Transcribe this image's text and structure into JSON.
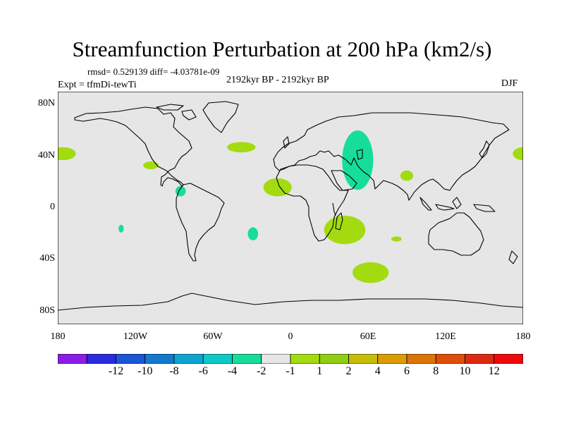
{
  "title": "Streamfunction Perturbation at 200 hPa (km2/s)",
  "stats_line": "rmsd= 0.529139 diff= -4.03781e-09",
  "experiment": "Expt = tfmDi-tewTi",
  "period": "2192kyr BP - 2192kyr BP",
  "season": "DJF",
  "map": {
    "projection": "cylindrical-equidistant",
    "lon_range": [
      -180,
      180
    ],
    "lat_range": [
      -90,
      90
    ],
    "background_color": "#e6e6e6",
    "x_ticks": [
      {
        "lon": -180,
        "label": "180"
      },
      {
        "lon": -120,
        "label": "120W"
      },
      {
        "lon": -60,
        "label": "60W"
      },
      {
        "lon": 0,
        "label": "0"
      },
      {
        "lon": 60,
        "label": "60E"
      },
      {
        "lon": 120,
        "label": "120E"
      },
      {
        "lon": 180,
        "label": "180"
      }
    ],
    "y_ticks": [
      {
        "lat": 80,
        "label": "80N"
      },
      {
        "lat": 40,
        "label": "40N"
      },
      {
        "lat": 0,
        "label": "0"
      },
      {
        "lat": -40,
        "label": "40S"
      },
      {
        "lat": -80,
        "label": "80S"
      }
    ],
    "anomalies": [
      {
        "name": "n-pacific-east",
        "lon": -176,
        "lat": 42,
        "rlon": 10,
        "rlat": 5,
        "level": "1 to 2"
      },
      {
        "name": "n-pacific-west",
        "lon": 180,
        "lat": 42,
        "rlon": 8,
        "rlat": 5,
        "level": "1 to 2"
      },
      {
        "name": "ne-pacific",
        "lon": -108,
        "lat": 33,
        "rlon": 6,
        "rlat": 3,
        "level": "1 to 2"
      },
      {
        "name": "n-atlantic",
        "lon": -38,
        "lat": 47,
        "rlon": 11,
        "rlat": 4,
        "level": "1 to 2"
      },
      {
        "name": "central-america",
        "lon": -85,
        "lat": 13,
        "rlon": 4,
        "rlat": 4,
        "level": "-2 to -1"
      },
      {
        "name": "n-africa",
        "lon": -10,
        "lat": 16,
        "rlon": 11,
        "rlat": 7,
        "level": "1 to 2"
      },
      {
        "name": "middle-east",
        "lon": 52,
        "lat": 37,
        "rlon": 12,
        "rlat": 23,
        "level": "-2 to -1"
      },
      {
        "name": "tibet",
        "lon": 90,
        "lat": 25,
        "rlon": 5,
        "rlat": 4,
        "level": "1 to 2"
      },
      {
        "name": "s-africa",
        "lon": 42,
        "lat": -17,
        "rlon": 16,
        "rlat": 11,
        "level": "1 to 2"
      },
      {
        "name": "s-atlantic",
        "lon": -29,
        "lat": -20,
        "rlon": 4,
        "rlat": 5,
        "level": "-2 to -1"
      },
      {
        "name": "s-pacific",
        "lon": -131,
        "lat": -16,
        "rlon": 2,
        "rlat": 3,
        "level": "-2 to -1"
      },
      {
        "name": "s-indian",
        "lon": 82,
        "lat": -24,
        "rlon": 4,
        "rlat": 2,
        "level": "1 to 2"
      },
      {
        "name": "s-ocean",
        "lon": 62,
        "lat": -50,
        "rlon": 14,
        "rlat": 8,
        "level": "1 to 2"
      }
    ]
  },
  "colorbar": {
    "colors": [
      "#8a1ee6",
      "#2a2adf",
      "#1a56d6",
      "#137acb",
      "#10a4d2",
      "#0fc9c9",
      "#16dd9a",
      "#e6e6e6",
      "#a3db10",
      "#8fce12",
      "#c5bd08",
      "#dc9c06",
      "#dc7408",
      "#dc4e0a",
      "#dc2a10",
      "#ee0a0a"
    ],
    "labels": [
      "-12",
      "-10",
      "-8",
      "-6",
      "-4",
      "-2",
      "-1",
      "1",
      "2",
      "4",
      "6",
      "8",
      "10",
      "12"
    ]
  }
}
